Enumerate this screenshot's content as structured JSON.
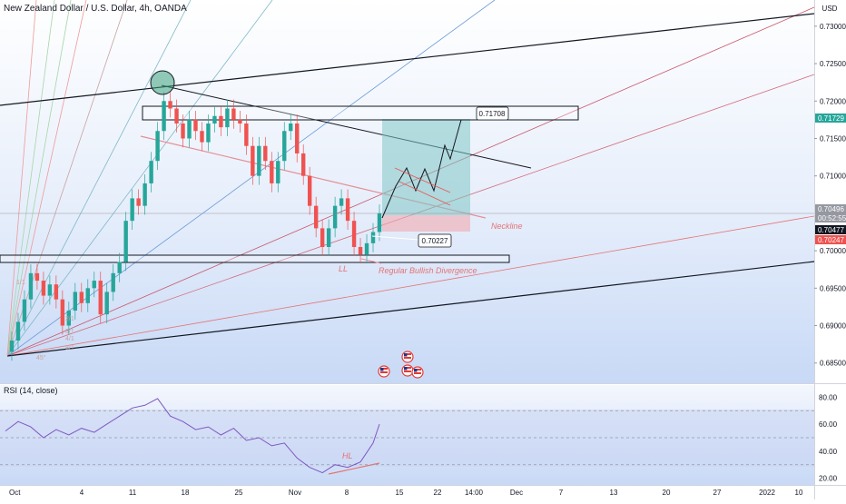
{
  "header": {
    "symbol_title": "New Zealand Dollar / U.S. Dollar, 4h, OANDA",
    "currency": "USD"
  },
  "rsi": {
    "title": "RSI (14, close)",
    "levels": [
      "80.00",
      "60.00",
      "40.00",
      "20.00"
    ]
  },
  "chart_data": {
    "type": "candlestick",
    "price_axis": {
      "range": [
        0.6823,
        0.7335
      ],
      "ticks": [
        "0.73000",
        "0.72500",
        "0.72000",
        "0.71500",
        "0.71000",
        "0.70000",
        "0.69500",
        "0.69000",
        "0.68500"
      ]
    },
    "time_axis": {
      "ticks": [
        "Oct",
        "4",
        "11",
        "18",
        "25",
        "Nov",
        "8",
        "15",
        "22",
        "14:00",
        "Dec",
        "7",
        "13",
        "20",
        "27",
        "2022",
        "10"
      ]
    },
    "price_tags": [
      {
        "label": "0.71729",
        "value": 0.71729,
        "color": "#26a69a"
      },
      {
        "label": "0.70496",
        "value": 0.70496,
        "color": "#9598a1"
      },
      {
        "label": "00:52:55",
        "value": 0.70416,
        "color": "#9598a1"
      },
      {
        "label": "0.70477",
        "value": 0.703,
        "color": "#131722"
      },
      {
        "label": "0.70247",
        "value": 0.7015,
        "color": "#ef5350"
      }
    ],
    "annotations": {
      "target_label": "0.71708",
      "entry_label": "0.70227",
      "neckline": "Neckline",
      "ll": "LL",
      "hl": "HL",
      "divergence": "Regular Bullish Divergence",
      "fan_ratios": [
        "1/1",
        "2/1",
        "3/1",
        "4/1",
        "8/1",
        "45°"
      ]
    },
    "close_series": [
      {
        "t": 0,
        "v": 0.6865
      },
      {
        "t": 2,
        "v": 0.688
      },
      {
        "t": 4,
        "v": 0.6905
      },
      {
        "t": 6,
        "v": 0.6935
      },
      {
        "t": 8,
        "v": 0.697
      },
      {
        "t": 10,
        "v": 0.696
      },
      {
        "t": 12,
        "v": 0.694
      },
      {
        "t": 14,
        "v": 0.6955
      },
      {
        "t": 16,
        "v": 0.6935
      },
      {
        "t": 18,
        "v": 0.69
      },
      {
        "t": 20,
        "v": 0.692
      },
      {
        "t": 22,
        "v": 0.6945
      },
      {
        "t": 24,
        "v": 0.693
      },
      {
        "t": 26,
        "v": 0.695
      },
      {
        "t": 28,
        "v": 0.696
      },
      {
        "t": 30,
        "v": 0.6915
      },
      {
        "t": 32,
        "v": 0.6945
      },
      {
        "t": 34,
        "v": 0.697
      },
      {
        "t": 36,
        "v": 0.6985
      },
      {
        "t": 38,
        "v": 0.704
      },
      {
        "t": 40,
        "v": 0.707
      },
      {
        "t": 42,
        "v": 0.706
      },
      {
        "t": 44,
        "v": 0.709
      },
      {
        "t": 46,
        "v": 0.712
      },
      {
        "t": 48,
        "v": 0.716
      },
      {
        "t": 50,
        "v": 0.72
      },
      {
        "t": 52,
        "v": 0.719
      },
      {
        "t": 54,
        "v": 0.717
      },
      {
        "t": 56,
        "v": 0.715
      },
      {
        "t": 58,
        "v": 0.7175
      },
      {
        "t": 60,
        "v": 0.716
      },
      {
        "t": 62,
        "v": 0.7145
      },
      {
        "t": 64,
        "v": 0.717
      },
      {
        "t": 66,
        "v": 0.718
      },
      {
        "t": 68,
        "v": 0.7165
      },
      {
        "t": 70,
        "v": 0.719
      },
      {
        "t": 72,
        "v": 0.7175
      },
      {
        "t": 74,
        "v": 0.717
      },
      {
        "t": 76,
        "v": 0.714
      },
      {
        "t": 78,
        "v": 0.71
      },
      {
        "t": 80,
        "v": 0.714
      },
      {
        "t": 82,
        "v": 0.712
      },
      {
        "t": 84,
        "v": 0.709
      },
      {
        "t": 86,
        "v": 0.712
      },
      {
        "t": 88,
        "v": 0.716
      },
      {
        "t": 90,
        "v": 0.717
      },
      {
        "t": 92,
        "v": 0.713
      },
      {
        "t": 94,
        "v": 0.71
      },
      {
        "t": 96,
        "v": 0.706
      },
      {
        "t": 98,
        "v": 0.703
      },
      {
        "t": 100,
        "v": 0.7005
      },
      {
        "t": 102,
        "v": 0.703
      },
      {
        "t": 104,
        "v": 0.706
      },
      {
        "t": 106,
        "v": 0.707
      },
      {
        "t": 108,
        "v": 0.704
      },
      {
        "t": 110,
        "v": 0.7005
      },
      {
        "t": 112,
        "v": 0.6995
      },
      {
        "t": 114,
        "v": 0.701
      },
      {
        "t": 116,
        "v": 0.7025
      },
      {
        "t": 118,
        "v": 0.705
      }
    ],
    "rsi_series": [
      {
        "t": 0,
        "v": 55
      },
      {
        "t": 4,
        "v": 62
      },
      {
        "t": 8,
        "v": 58
      },
      {
        "t": 12,
        "v": 50
      },
      {
        "t": 16,
        "v": 56
      },
      {
        "t": 20,
        "v": 52
      },
      {
        "t": 24,
        "v": 57
      },
      {
        "t": 28,
        "v": 54
      },
      {
        "t": 32,
        "v": 60
      },
      {
        "t": 36,
        "v": 66
      },
      {
        "t": 40,
        "v": 72
      },
      {
        "t": 44,
        "v": 74
      },
      {
        "t": 48,
        "v": 79
      },
      {
        "t": 52,
        "v": 66
      },
      {
        "t": 56,
        "v": 62
      },
      {
        "t": 60,
        "v": 56
      },
      {
        "t": 64,
        "v": 58
      },
      {
        "t": 68,
        "v": 52
      },
      {
        "t": 72,
        "v": 57
      },
      {
        "t": 76,
        "v": 48
      },
      {
        "t": 80,
        "v": 50
      },
      {
        "t": 84,
        "v": 44
      },
      {
        "t": 88,
        "v": 46
      },
      {
        "t": 92,
        "v": 35
      },
      {
        "t": 96,
        "v": 28
      },
      {
        "t": 100,
        "v": 24
      },
      {
        "t": 104,
        "v": 30
      },
      {
        "t": 108,
        "v": 28
      },
      {
        "t": 112,
        "v": 32
      },
      {
        "t": 116,
        "v": 46
      },
      {
        "t": 118,
        "v": 60
      }
    ]
  }
}
